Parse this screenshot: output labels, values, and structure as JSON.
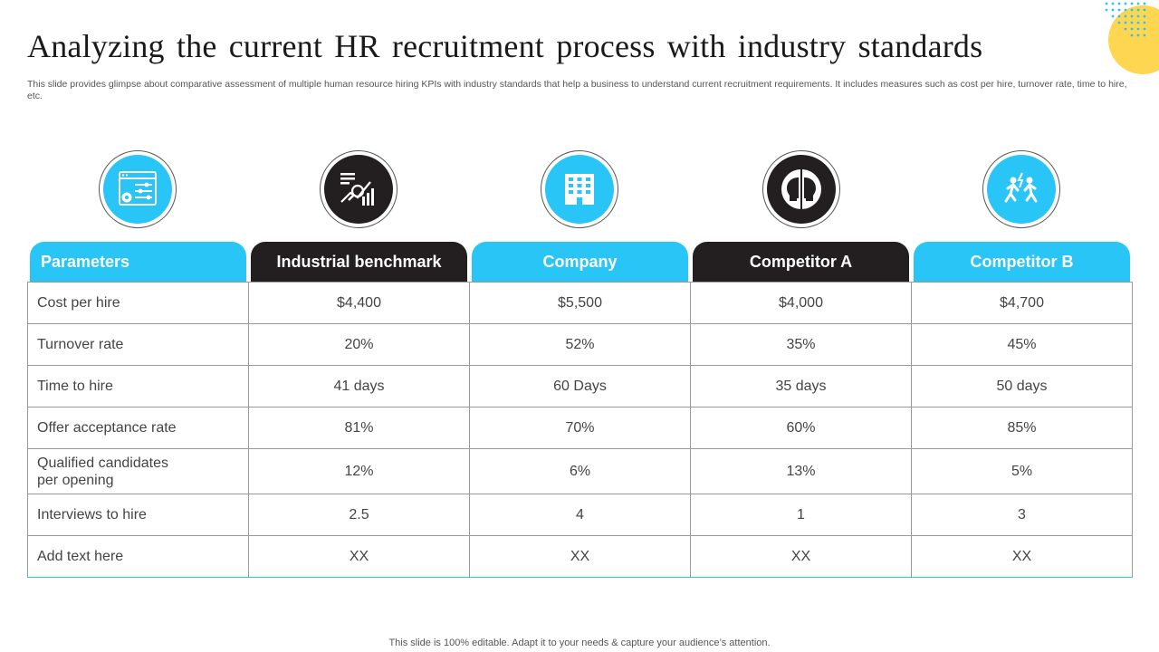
{
  "title": "Analyzing the current HR recruitment process with industry standards",
  "subtitle": "This slide provides glimpse about comparative assessment of multiple human resource hiring KPIs with industry standards that help a business to understand current recruitment requirements. It includes measures such as cost per hire, turnover rate, time to hire, etc.",
  "footer": "This slide is 100% editable. Adapt it to your needs & capture your audience’s attention.",
  "icons": [
    "settings-panel-icon",
    "analytics-chart-icon",
    "office-building-icon",
    "two-heads-icon",
    "people-running-icon"
  ],
  "colors": {
    "accent": "#29c5f6",
    "dark": "#231f20",
    "deco_yellow": "#ffd64f"
  },
  "table": {
    "headers": [
      "Parameters",
      "Industrial benchmark",
      "Company",
      "Competitor A",
      "Competitor B"
    ],
    "rows": [
      [
        "Cost per hire",
        "$4,400",
        "$5,500",
        "$4,000",
        "$4,700"
      ],
      [
        "Turnover  rate",
        "20%",
        "52%",
        "35%",
        "45%"
      ],
      [
        "Time to hire",
        "41 days",
        "60 Days",
        "35 days",
        "50 days"
      ],
      [
        "Offer acceptance rate",
        "81%",
        "70%",
        "60%",
        "85%"
      ],
      [
        "Qualified candidates\nper opening",
        "12%",
        "6%",
        "13%",
        "5%"
      ],
      [
        "Interviews  to hire",
        "2.5",
        "4",
        "1",
        "3"
      ],
      [
        "Add text here",
        "XX",
        "XX",
        "XX",
        "XX"
      ]
    ]
  }
}
